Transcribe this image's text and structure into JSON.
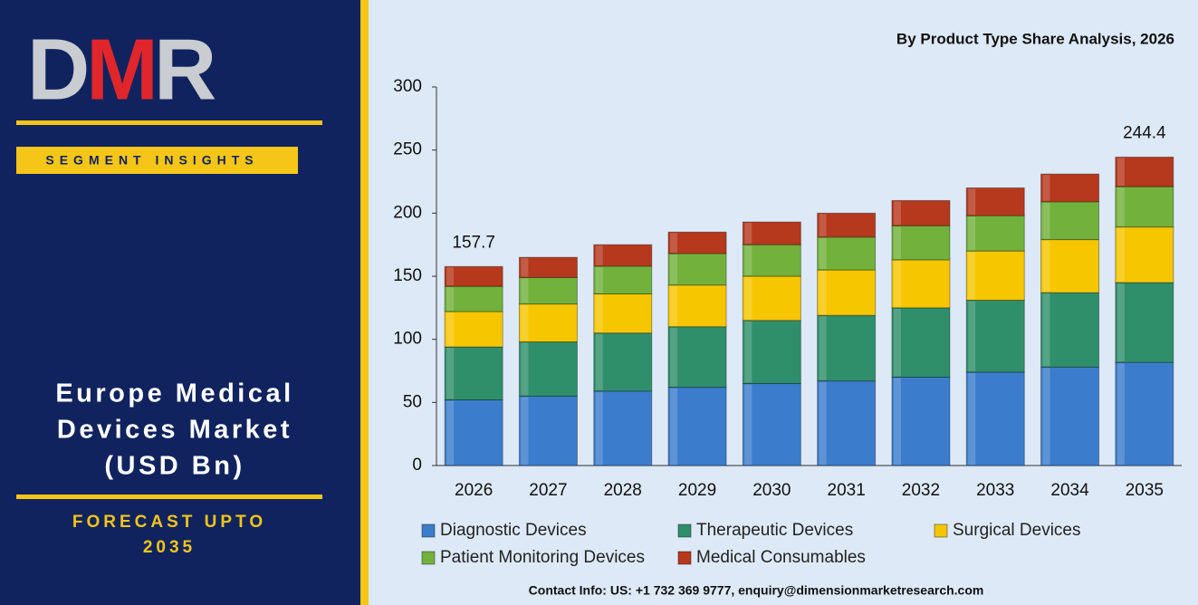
{
  "panel": {
    "logo": [
      "D",
      "M",
      "R"
    ],
    "badge": "SEGMENT INSIGHTS",
    "title_lines": [
      "Europe Medical",
      "Devices Market",
      "(USD Bn)"
    ],
    "forecast_lines": [
      "FORECAST UPTO",
      "2035"
    ],
    "contact": "Contact Info: US: +1 732 369 9777, enquiry@dimensionmarketresearch.com"
  },
  "chart_data": {
    "type": "stacked_bar",
    "title": "By Product Type Share Analysis, 2026",
    "categories": [
      "2026",
      "2027",
      "2028",
      "2029",
      "2030",
      "2031",
      "2032",
      "2033",
      "2034",
      "2035"
    ],
    "series": [
      {
        "name": "Diagnostic Devices",
        "color": "#3b7dcc",
        "values": [
          52,
          55,
          59,
          62,
          65,
          67,
          70,
          74,
          78,
          81.7
        ]
      },
      {
        "name": "Therapeutic Devices",
        "color": "#2f8f6b",
        "values": [
          42,
          43,
          46,
          48,
          50,
          52,
          55,
          57,
          59,
          63.3
        ]
      },
      {
        "name": "Surgical Devices",
        "color": "#f6c600",
        "values": [
          28,
          30,
          31,
          33,
          35,
          36,
          38,
          39,
          42,
          44
        ]
      },
      {
        "name": "Patient Monitoring Devices",
        "color": "#72b13b",
        "values": [
          20,
          21,
          22,
          25,
          25,
          26,
          27,
          28,
          30,
          32
        ]
      },
      {
        "name": "Medical Consumables",
        "color": "#b6381d",
        "values": [
          15.7,
          16,
          17,
          17,
          18,
          19,
          20,
          22,
          22,
          23.4
        ]
      }
    ],
    "annotations": [
      {
        "category": "2026",
        "value": 157.7
      },
      {
        "category": "2035",
        "value": 244.4
      }
    ],
    "ylim": [
      0,
      300
    ],
    "yticks": [
      0,
      50,
      100,
      150,
      200,
      250,
      300
    ],
    "grid": false
  }
}
